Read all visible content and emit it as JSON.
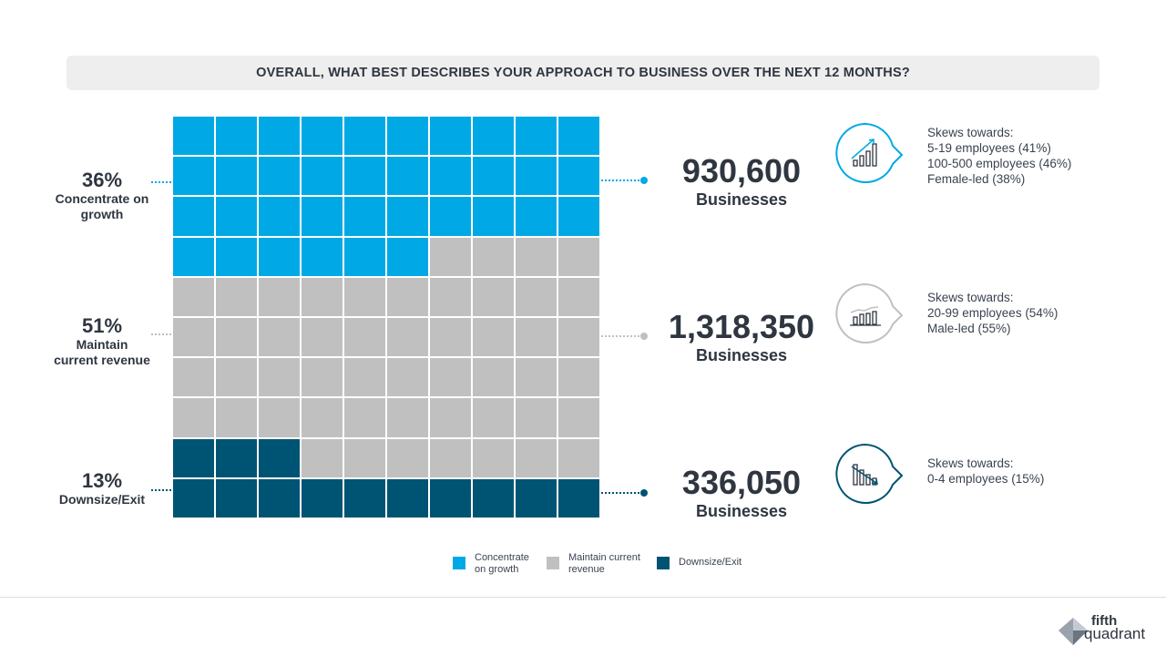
{
  "title": "OVERALL, WHAT BEST DESCRIBES YOUR APPROACH TO BUSINESS OVER THE NEXT 12 MONTHS?",
  "colors": {
    "growth": "#00a9e6",
    "maintain": "#c0c0c0",
    "exit": "#005473"
  },
  "chart_data": {
    "type": "waffle",
    "grid": "10x10",
    "categories": [
      "Concentrate on growth",
      "Maintain current revenue",
      "Downsize/Exit"
    ],
    "cells": [
      36,
      51,
      13
    ],
    "values_percent": [
      36,
      51,
      13
    ],
    "businesses": [
      930600,
      1318350,
      336050
    ]
  },
  "segments": [
    {
      "pct": "36%",
      "label": "Concentrate on growth",
      "count": "930,600",
      "count_unit": "Businesses",
      "icon": "bar-chart-up-icon",
      "skews_title": "Skews towards:",
      "skews": [
        "5-19 employees (41%)",
        "100-500 employees (46%)",
        "Female-led (38%)"
      ]
    },
    {
      "pct": "51%",
      "label": "Maintain current revenue",
      "count": "1,318,350",
      "count_unit": "Businesses",
      "icon": "bar-chart-flat-icon",
      "skews_title": "Skews towards:",
      "skews": [
        "20-99 employees (54%)",
        "Male-led (55%)"
      ]
    },
    {
      "pct": "13%",
      "label": "Downsize/Exit",
      "count": "336,050",
      "count_unit": "Businesses",
      "icon": "bar-chart-down-icon",
      "skews_title": "Skews towards:",
      "skews": [
        "0-4 employees (15%)"
      ]
    }
  ],
  "legend": [
    {
      "label": "Concentrate on growth"
    },
    {
      "label": "Maintain current revenue"
    },
    {
      "label": "Downsize/Exit"
    }
  ],
  "logo": {
    "line1": "fifth",
    "line2": "quadrant"
  }
}
